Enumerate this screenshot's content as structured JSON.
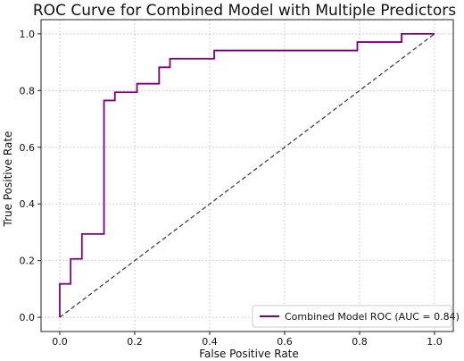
{
  "chart_data": {
    "type": "line",
    "title": "ROC Curve for Combined Model with Multiple Predictors",
    "xlabel": "False Positive Rate",
    "ylabel": "True Positive Rate",
    "xlim": [
      -0.05,
      1.05
    ],
    "ylim": [
      -0.05,
      1.05
    ],
    "xticks": [
      "0.0",
      "0.2",
      "0.4",
      "0.6",
      "0.8",
      "1.0"
    ],
    "yticks": [
      "0.0",
      "0.2",
      "0.4",
      "0.6",
      "0.8",
      "1.0"
    ],
    "grid": true,
    "legend_position": "lower right",
    "series": [
      {
        "name": "Combined Model ROC (AUC = 0.84)",
        "color": "#800080",
        "style": "solid",
        "x": [
          0.0,
          0.0,
          0.029,
          0.029,
          0.059,
          0.059,
          0.118,
          0.118,
          0.147,
          0.147,
          0.206,
          0.206,
          0.265,
          0.265,
          0.294,
          0.294,
          0.412,
          0.412,
          0.794,
          0.794,
          0.912,
          0.912,
          1.0
        ],
        "y": [
          0.0,
          0.118,
          0.118,
          0.206,
          0.206,
          0.294,
          0.294,
          0.765,
          0.765,
          0.794,
          0.794,
          0.824,
          0.824,
          0.882,
          0.882,
          0.912,
          0.912,
          0.941,
          0.941,
          0.971,
          0.971,
          1.0,
          1.0
        ]
      },
      {
        "name": "",
        "color": "#444444",
        "style": "dashed",
        "x": [
          0.0,
          1.0
        ],
        "y": [
          0.0,
          1.0
        ]
      }
    ]
  }
}
